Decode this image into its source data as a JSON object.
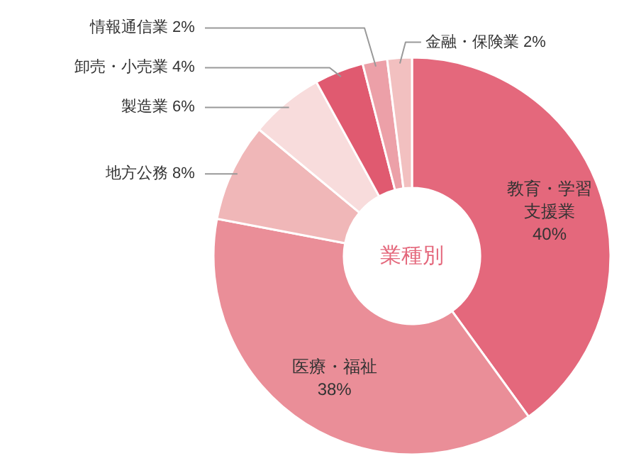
{
  "chart_data": {
    "type": "donut",
    "title": "業種別",
    "categories": [
      "教育・学習支援業",
      "医療・福祉",
      "地方公務",
      "製造業",
      "卸売・小売業",
      "情報通信業",
      "金融・保険業"
    ],
    "values": [
      40,
      38,
      8,
      6,
      4,
      2,
      2
    ],
    "value_labels": [
      "40%",
      "38%",
      "8%",
      "6%",
      "4%",
      "2%",
      "2%"
    ],
    "colors": [
      "#e4687c",
      "#ea8e98",
      "#f0b7b8",
      "#f8dcdc",
      "#e05a70",
      "#eca0a8",
      "#f2c0c0"
    ]
  }
}
